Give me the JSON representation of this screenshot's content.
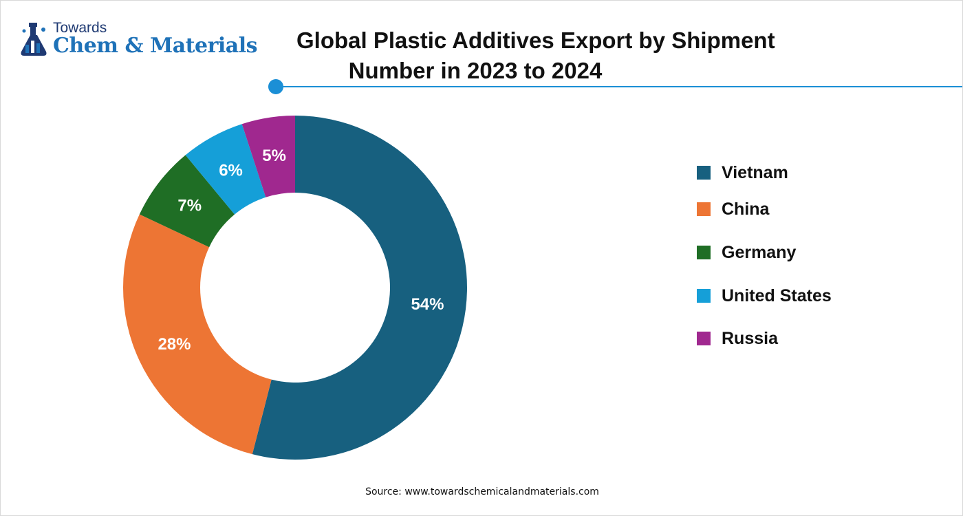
{
  "logo": {
    "small_text": "Towards",
    "big_text": "Chem & Materials"
  },
  "chart_data": {
    "type": "pie",
    "subtype": "donut",
    "title_line1": "Global Plastic Additives Export by Shipment",
    "title_line2": "Number in 2023 to 2024",
    "categories": [
      "Vietnam",
      "China",
      "Germany",
      "United States",
      "Russia"
    ],
    "values": [
      54,
      28,
      7,
      6,
      5
    ],
    "value_labels": [
      "54%",
      "28%",
      "7%",
      "6%",
      "5%"
    ],
    "colors": [
      "#17607f",
      "#ed7534",
      "#1f6e25",
      "#159fd8",
      "#a0288f"
    ],
    "legend_position": "right",
    "start_angle": "12 o'clock",
    "direction": "clockwise"
  },
  "footer": {
    "source": "Source: www.towardschemicalandmaterials.com"
  }
}
